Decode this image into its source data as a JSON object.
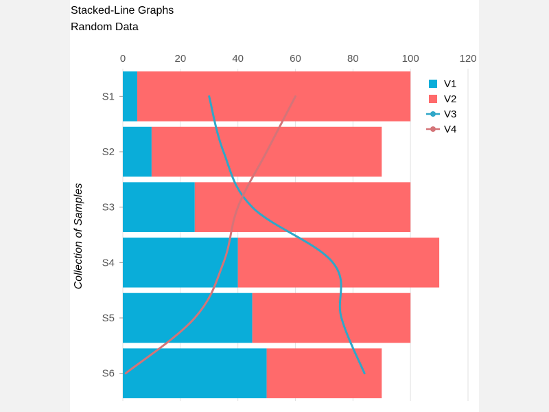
{
  "chart_data": {
    "type": "bar",
    "orientation": "horizontal",
    "stacked": true,
    "title": "Stacked-Line Graphs",
    "subtitle": "Random Data",
    "xlabel": "",
    "ylabel": "Collection of Samples",
    "xlim": [
      0,
      120
    ],
    "xticks": [
      0,
      20,
      40,
      60,
      80,
      100,
      120
    ],
    "x_axis_position": "top",
    "categories": [
      "S1",
      "S2",
      "S3",
      "S4",
      "S5",
      "S6"
    ],
    "grid": true,
    "legend": "top-right",
    "series": [
      {
        "name": "V1",
        "kind": "bar",
        "color": "#0aadd9",
        "values": [
          5,
          10,
          25,
          40,
          45,
          50
        ]
      },
      {
        "name": "V2",
        "kind": "bar",
        "color": "#ff6a6b",
        "values": [
          95,
          80,
          75,
          70,
          55,
          40
        ]
      },
      {
        "name": "V3",
        "kind": "line",
        "color": "#2fa7c8",
        "values": [
          30,
          35,
          45,
          73,
          76,
          84
        ]
      },
      {
        "name": "V4",
        "kind": "line",
        "color": "#d47478",
        "values": [
          60,
          50,
          40,
          35,
          25,
          1
        ]
      }
    ]
  }
}
